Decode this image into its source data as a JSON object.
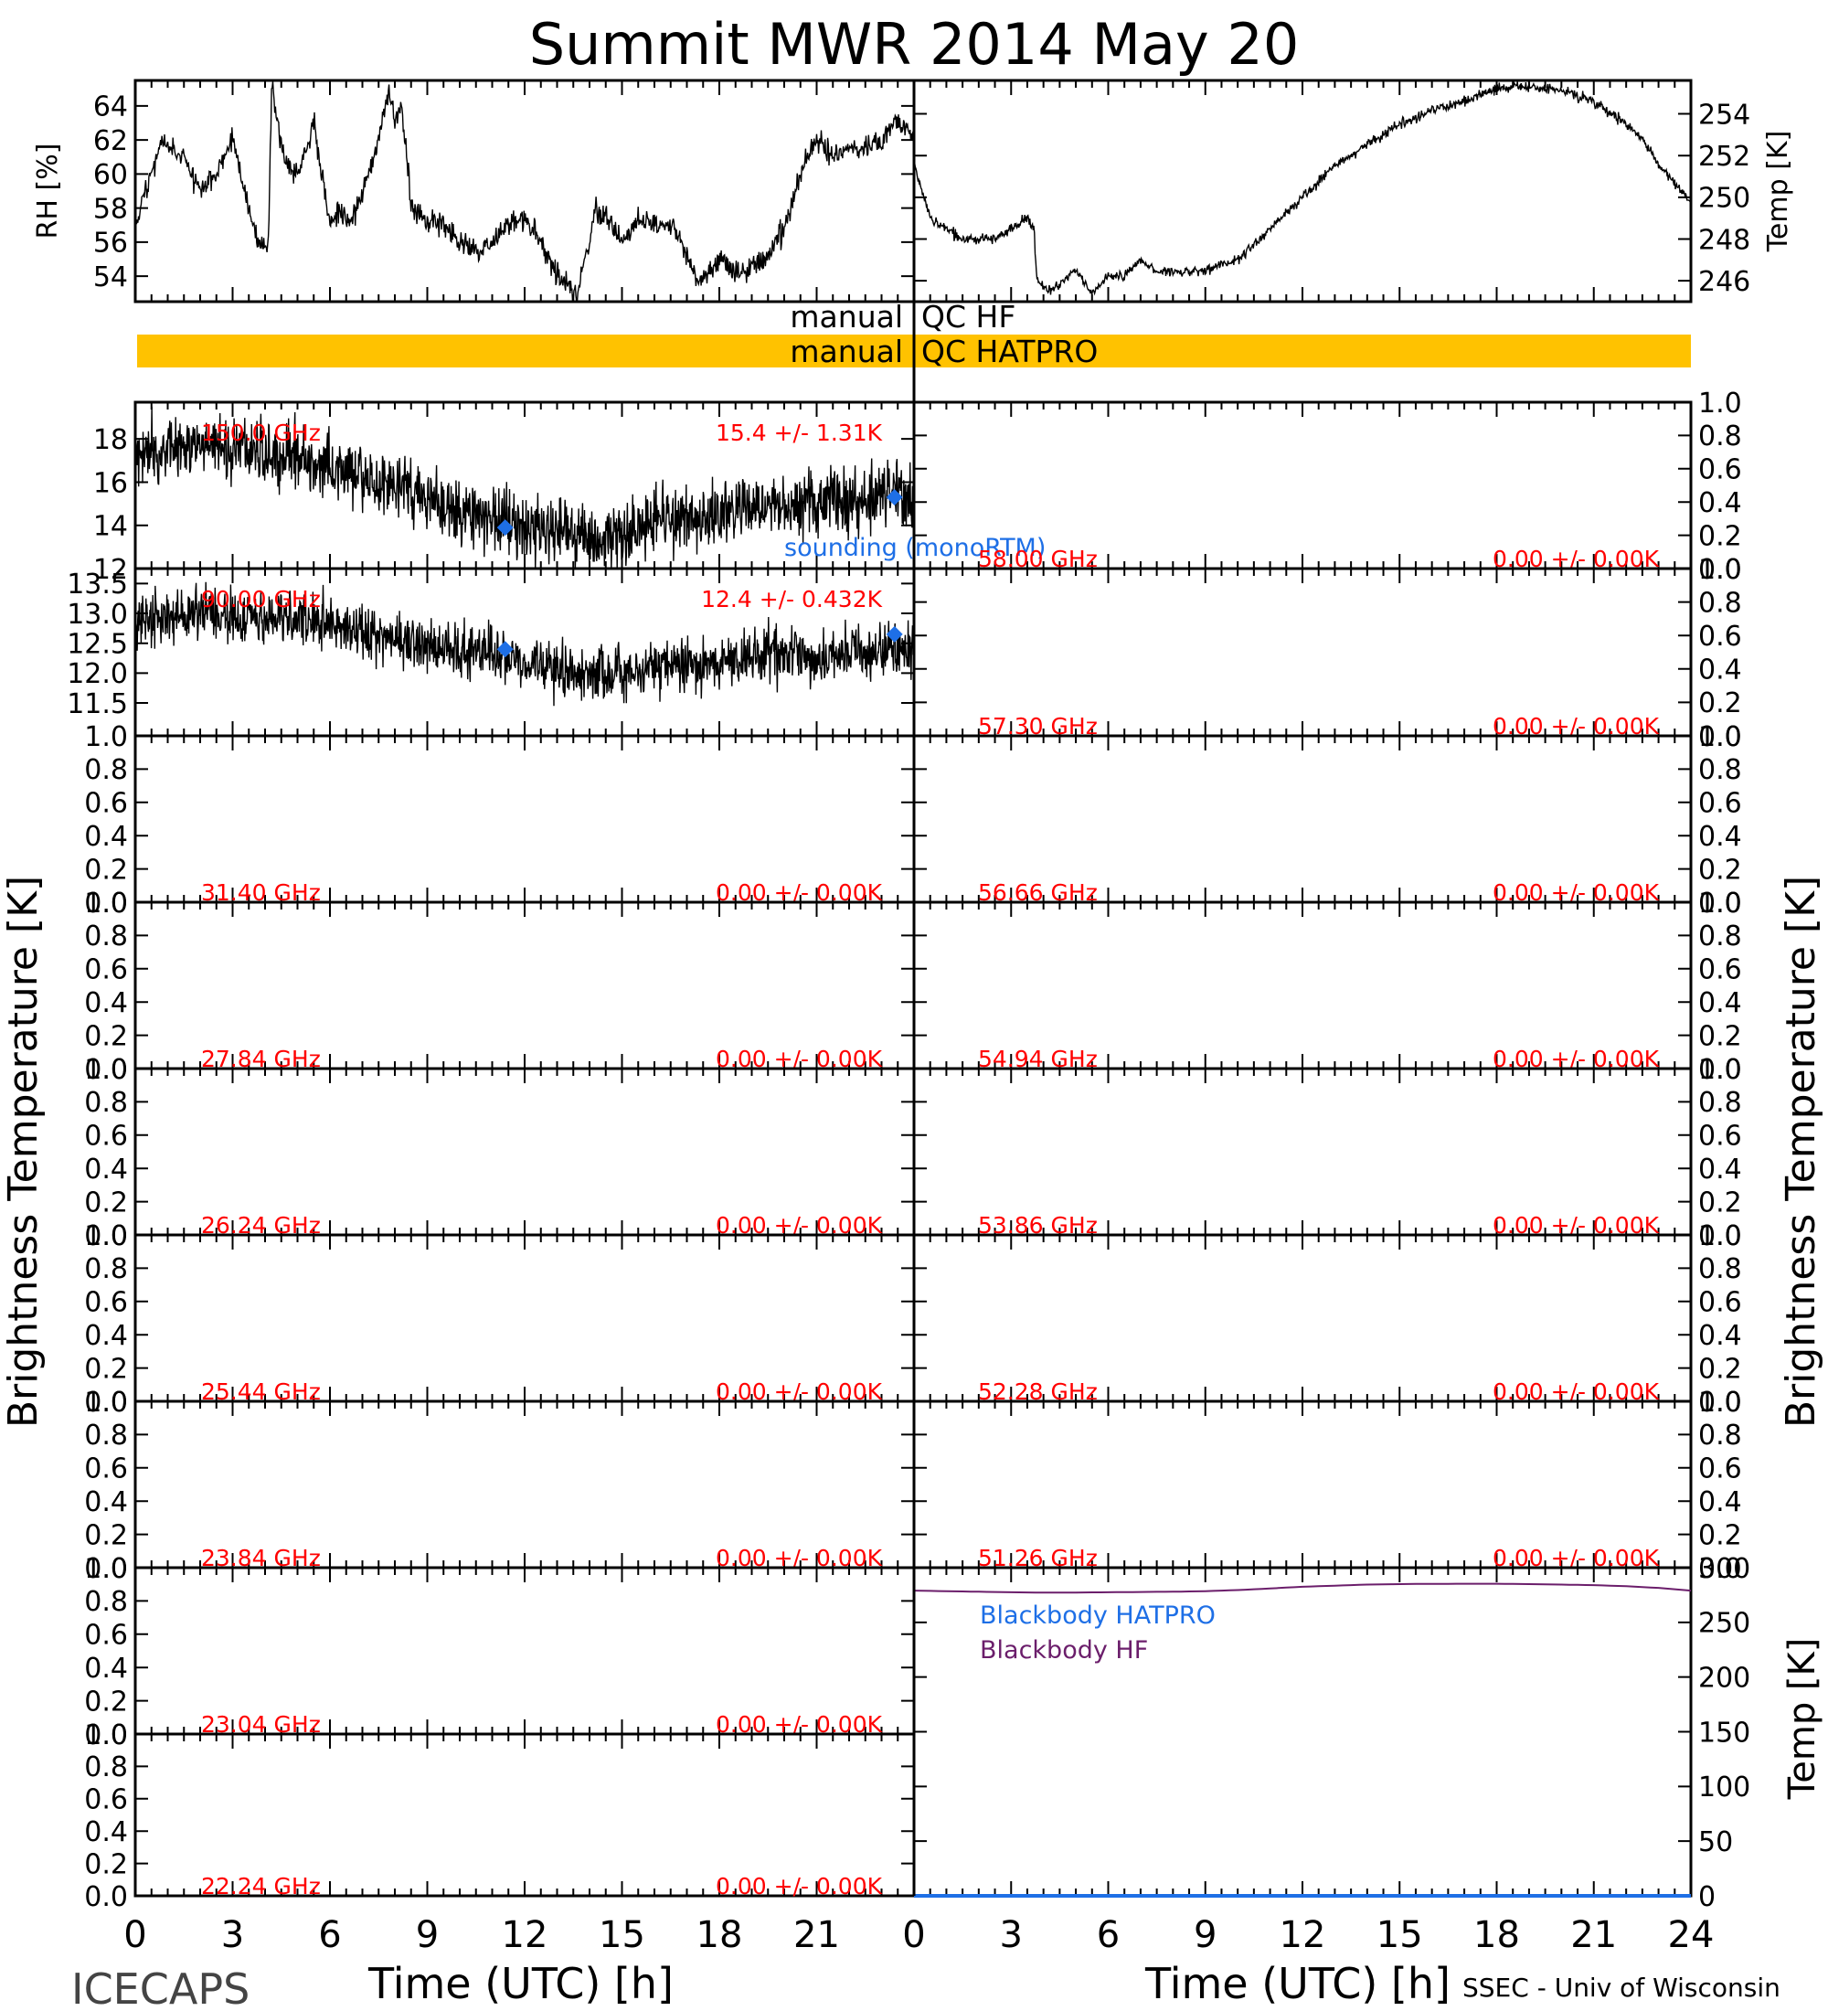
{
  "title": "Summit MWR 2014 May 20",
  "footer": {
    "left": "ICECAPS",
    "right": "SSEC - Univ of Wisconsin"
  },
  "colors": {
    "axis": "#000000",
    "channel_label": "#ff0000",
    "sounding": "#1e6fe6",
    "blackbody_hatpro": "#1e6fe6",
    "blackbody_hf": "#6b1e6b",
    "qc_bar": "#ffc200"
  },
  "qc": {
    "hf_left": "manual",
    "hf_right": "QC HF",
    "hatpro_left": "manual",
    "hatpro_right": "QC HATPRO"
  },
  "chart_data": [
    {
      "id": "rh",
      "type": "line",
      "title": "",
      "xlabel": "",
      "ylabel": "RH [%]",
      "xlim": [
        0,
        24
      ],
      "ylim": [
        52.5,
        65.5
      ],
      "yticks": [
        54,
        56,
        58,
        60,
        62,
        64
      ],
      "yticklabels": [
        "54",
        "56",
        "58",
        "60",
        "62",
        "64"
      ],
      "series": [
        {
          "x": [
            0,
            0.5,
            0.8,
            1,
            1.5,
            2,
            2.5,
            3,
            3.5,
            3.8,
            4.1,
            4.2,
            4.4,
            4.6,
            5,
            5.5,
            6,
            6.3,
            6.6,
            7,
            7.5,
            7.8,
            8,
            8.2,
            8.3,
            8.5,
            8.8,
            9.5,
            10,
            10.5,
            11,
            11.5,
            12,
            12.5,
            13,
            13.3,
            13.6,
            14,
            14.2,
            14.5,
            15,
            15.5,
            16,
            16.5,
            17,
            17.3,
            17.6,
            18,
            18.5,
            19,
            19.5,
            20,
            20.5,
            21,
            21.5,
            22,
            22.5,
            23,
            23.4,
            24
          ],
          "y": [
            57,
            60,
            62,
            61.5,
            61,
            59,
            60,
            62,
            58,
            56,
            55.5,
            65,
            63,
            61,
            60,
            63,
            57,
            58,
            57,
            59,
            62,
            65,
            63,
            64,
            62.5,
            58,
            57.5,
            57,
            56,
            55.5,
            56,
            57,
            57.5,
            56,
            54,
            53.5,
            53,
            56,
            58,
            57.5,
            56,
            57.5,
            57,
            57,
            55.5,
            53.5,
            54,
            55,
            54,
            54.5,
            55,
            57,
            60,
            62,
            61,
            61.5,
            61.5,
            62,
            63,
            62.5
          ]
        }
      ]
    },
    {
      "id": "temp",
      "type": "line",
      "title": "",
      "xlabel": "",
      "ylabel": "Temp [K]",
      "xlim": [
        0,
        24
      ],
      "ylim": [
        245,
        255.6
      ],
      "yticks": [
        246,
        248,
        250,
        252,
        254
      ],
      "yticklabels": [
        "246",
        "248",
        "250",
        "252",
        "254"
      ],
      "series": [
        {
          "x": [
            0,
            0.3,
            0.5,
            1,
            1.5,
            2,
            2.5,
            3,
            3.5,
            3.7,
            3.8,
            4.2,
            4.5,
            5,
            5.5,
            6,
            6.5,
            7,
            7.5,
            8,
            9,
            10,
            11,
            12,
            13,
            14,
            15,
            16,
            17,
            18,
            19,
            20,
            21,
            22,
            22.5,
            23,
            24
          ],
          "y": [
            251.5,
            250,
            249,
            248.5,
            248,
            248,
            248,
            248.5,
            249,
            248.5,
            246,
            245.5,
            245.8,
            246.5,
            245.4,
            246.2,
            246.2,
            247,
            246.5,
            246.4,
            246.5,
            247,
            248.5,
            250,
            251.5,
            252.5,
            253.5,
            254.2,
            254.6,
            255.2,
            255.3,
            255.1,
            254.6,
            253.5,
            252.8,
            251.6,
            249.8
          ]
        }
      ]
    },
    {
      "id": "ch_150_0",
      "type": "line",
      "channel": "150.0 GHz",
      "stats": "15.4 +/-  1.31K",
      "xlim": [
        0,
        24
      ],
      "ylim": [
        12,
        19.7
      ],
      "yticks": [
        12,
        14,
        16,
        18
      ],
      "yticklabels": [
        "12",
        "14",
        "16",
        "18"
      ],
      "series": [
        {
          "x": [
            0,
            1,
            2,
            3,
            4,
            5,
            6,
            7,
            8,
            9,
            10,
            11,
            12,
            13,
            14,
            15,
            16,
            17,
            18,
            19,
            20,
            21,
            22,
            23,
            24
          ],
          "y": [
            17.3,
            17.6,
            17.8,
            17.5,
            17.2,
            17,
            16.8,
            16.2,
            15.8,
            15.2,
            14.8,
            14.3,
            13.9,
            13.8,
            13.2,
            13.6,
            14.2,
            14.3,
            14.5,
            14.7,
            14.8,
            15,
            15.2,
            15.4,
            15.6
          ]
        }
      ],
      "sounding": {
        "label": "sounding (monoRTM)",
        "x": [
          11.4,
          23.4
        ],
        "y": [
          13.9,
          15.3
        ]
      }
    },
    {
      "id": "ch_90_00",
      "type": "line",
      "channel": "90.00 GHz",
      "stats": "12.4 +/- 0.432K",
      "xlim": [
        0,
        24
      ],
      "ylim": [
        10.95,
        13.75
      ],
      "yticks": [
        11.5,
        12.0,
        12.5,
        13.0,
        13.5
      ],
      "yticklabels": [
        "11.5",
        "12.0",
        "12.5",
        "13.0",
        "13.5"
      ],
      "series": [
        {
          "x": [
            0,
            1,
            2,
            3,
            4,
            5,
            6,
            7,
            8,
            9,
            10,
            11,
            12,
            13,
            14,
            15,
            16,
            17,
            18,
            19,
            20,
            21,
            22,
            23,
            24
          ],
          "y": [
            12.85,
            12.95,
            13,
            13,
            12.95,
            12.9,
            12.8,
            12.7,
            12.55,
            12.45,
            12.4,
            12.35,
            12.2,
            12.05,
            11.95,
            12,
            12.1,
            12.15,
            12.2,
            12.25,
            12.3,
            12.3,
            12.35,
            12.4,
            12.45
          ]
        }
      ],
      "sounding": {
        "label": "",
        "x": [
          11.4,
          23.4
        ],
        "y": [
          12.4,
          12.65
        ]
      }
    },
    {
      "id": "ch_31_40",
      "type": "line",
      "channel": "31.40 GHz",
      "stats": "0.00 +/-  0.00K",
      "xlim": [
        0,
        24
      ],
      "ylim": [
        0,
        1
      ]
    },
    {
      "id": "ch_27_84",
      "type": "line",
      "channel": "27.84 GHz",
      "stats": "0.00 +/-  0.00K",
      "xlim": [
        0,
        24
      ],
      "ylim": [
        0,
        1
      ]
    },
    {
      "id": "ch_26_24",
      "type": "line",
      "channel": "26.24 GHz",
      "stats": "0.00 +/-  0.00K",
      "xlim": [
        0,
        24
      ],
      "ylim": [
        0,
        1
      ]
    },
    {
      "id": "ch_25_44",
      "type": "line",
      "channel": "25.44 GHz",
      "stats": "0.00 +/-  0.00K",
      "xlim": [
        0,
        24
      ],
      "ylim": [
        0,
        1
      ]
    },
    {
      "id": "ch_23_84",
      "type": "line",
      "channel": "23.84 GHz",
      "stats": "0.00 +/-  0.00K",
      "xlim": [
        0,
        24
      ],
      "ylim": [
        0,
        1
      ]
    },
    {
      "id": "ch_23_04",
      "type": "line",
      "channel": "23.04 GHz",
      "stats": "0.00 +/-  0.00K",
      "xlim": [
        0,
        24
      ],
      "ylim": [
        0,
        1
      ]
    },
    {
      "id": "ch_22_24",
      "type": "line",
      "channel": "22.24 GHz",
      "stats": "0.00 +/-  0.00K",
      "xlim": [
        0,
        24
      ],
      "ylim": [
        0,
        1
      ]
    },
    {
      "id": "ch_58_00",
      "type": "line",
      "channel": "58.00 GHz",
      "stats": "0.00 +/-  0.00K",
      "xlim": [
        0,
        24
      ],
      "ylim": [
        0,
        1
      ]
    },
    {
      "id": "ch_57_30",
      "type": "line",
      "channel": "57.30 GHz",
      "stats": "0.00 +/-  0.00K",
      "xlim": [
        0,
        24
      ],
      "ylim": [
        0,
        1
      ]
    },
    {
      "id": "ch_56_66",
      "type": "line",
      "channel": "56.66 GHz",
      "stats": "0.00 +/-  0.00K",
      "xlim": [
        0,
        24
      ],
      "ylim": [
        0,
        1
      ]
    },
    {
      "id": "ch_54_94",
      "type": "line",
      "channel": "54.94 GHz",
      "stats": "0.00 +/-  0.00K",
      "xlim": [
        0,
        24
      ],
      "ylim": [
        0,
        1
      ]
    },
    {
      "id": "ch_53_86",
      "type": "line",
      "channel": "53.86 GHz",
      "stats": "0.00 +/-  0.00K",
      "xlim": [
        0,
        24
      ],
      "ylim": [
        0,
        1
      ]
    },
    {
      "id": "ch_52_28",
      "type": "line",
      "channel": "52.28 GHz",
      "stats": "0.00 +/-  0.00K",
      "xlim": [
        0,
        24
      ],
      "ylim": [
        0,
        1
      ]
    },
    {
      "id": "ch_51_26",
      "type": "line",
      "channel": "51.26 GHz",
      "stats": "0.00 +/-  0.00K",
      "xlim": [
        0,
        24
      ],
      "ylim": [
        0,
        1
      ]
    },
    {
      "id": "blackbody",
      "type": "line",
      "ylabel": "Temp [K]",
      "xlim": [
        0,
        24
      ],
      "ylim": [
        0,
        300
      ],
      "yticks": [
        0,
        50,
        100,
        150,
        200,
        250,
        300
      ],
      "yticklabels": [
        "0",
        "50",
        "100",
        "150",
        "200",
        "250",
        "300"
      ],
      "series": [
        {
          "name": "Blackbody HATPRO",
          "x": [
            0,
            24
          ],
          "y": [
            0,
            0
          ]
        },
        {
          "name": "Blackbody HF",
          "x": [
            0,
            1,
            2,
            3,
            4,
            5,
            6,
            7,
            8,
            9,
            10,
            11,
            12,
            13,
            14,
            15,
            16,
            17,
            18,
            19,
            20,
            21,
            22,
            23,
            24
          ],
          "y": [
            279,
            278.5,
            278,
            277.5,
            277.2,
            277.3,
            277.5,
            277.8,
            278,
            278.5,
            279.5,
            281,
            282.5,
            283.5,
            284.5,
            285,
            285.2,
            285.3,
            285.3,
            285,
            284.5,
            284,
            283,
            281.5,
            279
          ]
        }
      ]
    }
  ],
  "common_axes": {
    "ylabel_left": "Brightness Temperature [K]",
    "ylabel_right": "Brightness Temperature [K]",
    "unit_ticks": [
      "0.0",
      "0.2",
      "0.4",
      "0.6",
      "0.8",
      "1.0"
    ],
    "xticklabels_left": [
      "0",
      "3",
      "6",
      "9",
      "12",
      "15",
      "18",
      "21"
    ],
    "xticklabels_right": [
      "0",
      "3",
      "6",
      "9",
      "12",
      "15",
      "18",
      "21",
      "24"
    ],
    "xlabel_left": "Time (UTC) [h]",
    "xlabel_right": "Time (UTC) [h]"
  }
}
